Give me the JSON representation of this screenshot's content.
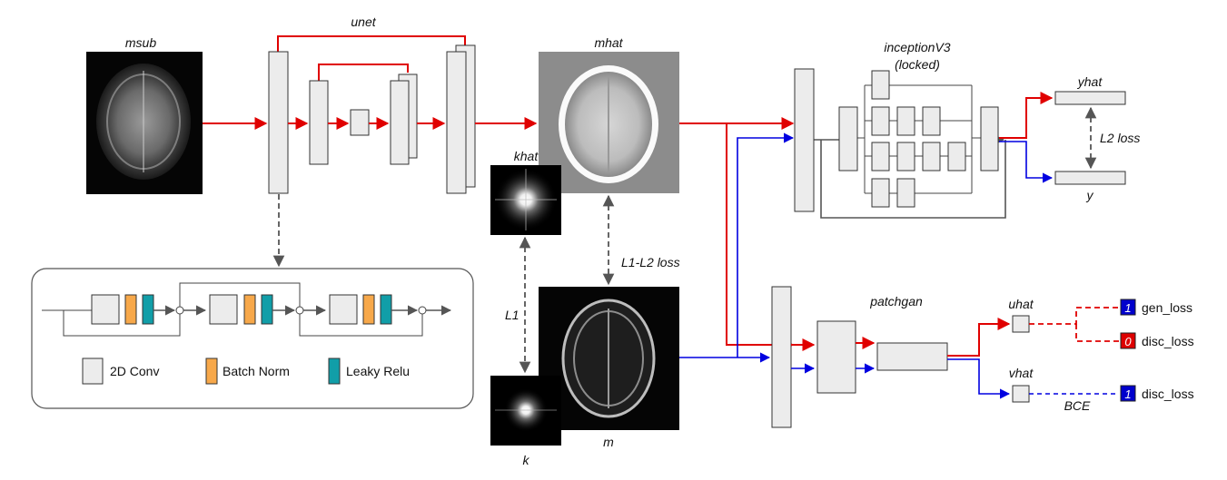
{
  "labels": {
    "msub": "msub",
    "unet": "unet",
    "mhat": "mhat",
    "khat": "khat",
    "k": "k",
    "m": "m",
    "l1": "L1",
    "l1l2": "L1-L2 loss",
    "inception_line1": "inceptionV3",
    "inception_line2": "(locked)",
    "yhat": "yhat",
    "y": "y",
    "l2": "L2 loss",
    "patchgan": "patchgan",
    "uhat": "uhat",
    "vhat": "vhat",
    "bce": "BCE",
    "gen_loss": "gen_loss",
    "disc_loss_1": "disc_loss",
    "disc_loss_2": "disc_loss"
  },
  "badges": {
    "gen": "1",
    "disc_fake": "0",
    "disc_real": "1"
  },
  "legend": {
    "conv": "2D Conv",
    "bn": "Batch Norm",
    "relu": "Leaky Relu"
  },
  "colors": {
    "generator_path": "#e00000",
    "real_path": "#0000e0",
    "conv": "#ececec",
    "batch_norm": "#f7a84a",
    "leaky_relu": "#119ea8",
    "badge_blue": "#0000cc",
    "badge_red": "#dd0000"
  }
}
